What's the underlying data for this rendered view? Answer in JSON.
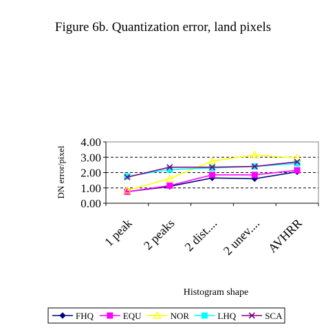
{
  "chart_data": {
    "type": "line",
    "title": "Figure 6b. Quantization error, land pixels",
    "xlabel": "Histogram shape",
    "ylabel": "DN error/pixel",
    "categories": [
      "1 peak",
      "2 peaks",
      "2 dist....",
      "2 unev....",
      "AVHRR"
    ],
    "ylim": [
      0,
      4
    ],
    "yticks": [
      "0.00",
      "1.00",
      "2.00",
      "3.00",
      "4.00"
    ],
    "ytick_values": [
      0,
      1,
      2,
      3,
      4
    ],
    "grid": "horizontal dashed at 1.00, 2.00, 3.00",
    "legend_position": "bottom",
    "series": [
      {
        "name": "FHQ",
        "values": [
          0.75,
          1.1,
          1.65,
          1.6,
          2.05
        ],
        "color": "#00007f",
        "marker": "diamond"
      },
      {
        "name": "EQU",
        "values": [
          0.75,
          1.15,
          1.85,
          1.85,
          2.15
        ],
        "color": "#ff00ff",
        "marker": "square"
      },
      {
        "name": "NOR",
        "values": [
          0.85,
          1.6,
          2.75,
          3.15,
          2.95
        ],
        "color": "#ffff00",
        "marker": "triangle"
      },
      {
        "name": "LHQ",
        "values": [
          1.75,
          2.2,
          2.3,
          2.4,
          2.6
        ],
        "color": "#00ffff",
        "marker": "square"
      },
      {
        "name": "SCA",
        "values": [
          1.7,
          2.35,
          2.35,
          2.4,
          2.7
        ],
        "color": "#800080",
        "marker": "x"
      }
    ]
  }
}
